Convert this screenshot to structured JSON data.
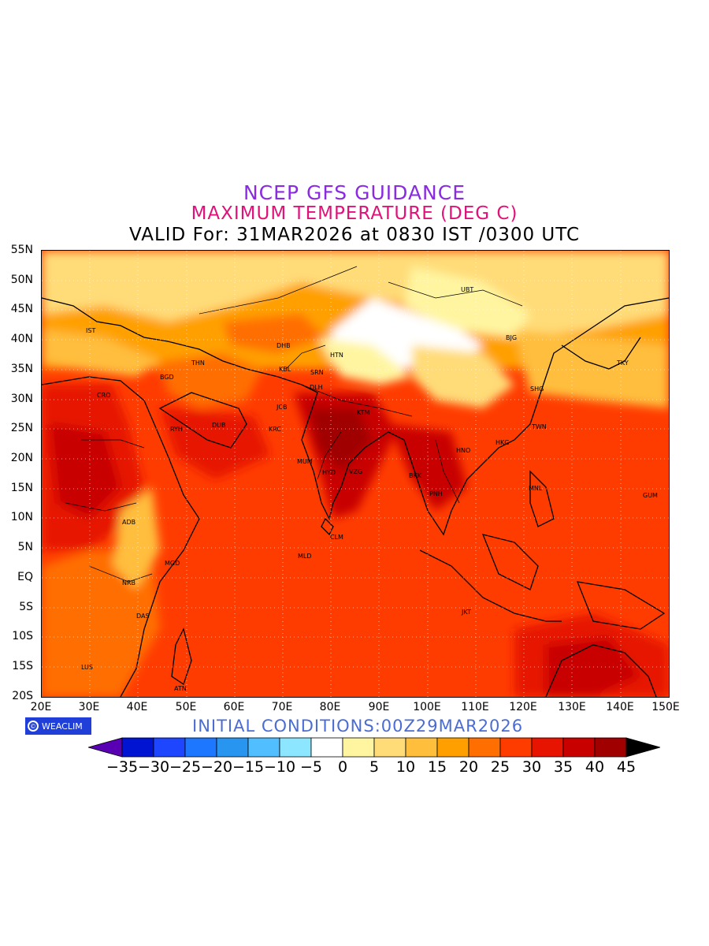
{
  "header": {
    "title": "NCEP GFS GUIDANCE",
    "subtitle": "MAXIMUM TEMPERATURE (DEG C)",
    "valid_line": "VALID For: 31MAR2026 at 0830 IST /0300 UTC"
  },
  "map": {
    "lat_labels": [
      "55N",
      "50N",
      "45N",
      "40N",
      "35N",
      "30N",
      "25N",
      "20N",
      "15N",
      "10N",
      "5N",
      "EQ",
      "5S",
      "10S",
      "15S",
      "20S"
    ],
    "lon_labels": [
      "20E",
      "30E",
      "40E",
      "50E",
      "60E",
      "70E",
      "80E",
      "90E",
      "100E",
      "110E",
      "120E",
      "130E",
      "140E",
      "150E"
    ],
    "cities": [
      {
        "code": "UBT"
      },
      {
        "code": "BJG"
      },
      {
        "code": "TKY"
      },
      {
        "code": "SHG"
      },
      {
        "code": "TWN"
      },
      {
        "code": "HKG"
      },
      {
        "code": "HNO"
      },
      {
        "code": "BKK"
      },
      {
        "code": "PNH"
      },
      {
        "code": "MNL"
      },
      {
        "code": "GUM"
      },
      {
        "code": "JKT"
      },
      {
        "code": "HTN"
      },
      {
        "code": "DHB"
      },
      {
        "code": "KBL"
      },
      {
        "code": "SRN"
      },
      {
        "code": "DLH"
      },
      {
        "code": "JCB"
      },
      {
        "code": "KRC"
      },
      {
        "code": "KTM"
      },
      {
        "code": "MUM"
      },
      {
        "code": "HYD"
      },
      {
        "code": "VZG"
      },
      {
        "code": "CLM"
      },
      {
        "code": "MLD"
      },
      {
        "code": "THN"
      },
      {
        "code": "BGD"
      },
      {
        "code": "IST"
      },
      {
        "code": "CRO"
      },
      {
        "code": "RYH"
      },
      {
        "code": "DUB"
      },
      {
        "code": "ADB"
      },
      {
        "code": "MGD"
      },
      {
        "code": "NRB"
      },
      {
        "code": "DAS"
      },
      {
        "code": "LUS"
      },
      {
        "code": "ATN"
      }
    ]
  },
  "footer": {
    "logo_text": "WEACLIM",
    "initial_conditions": "INITIAL CONDITIONS:00Z29MAR2026"
  },
  "colorbar": {
    "labels": [
      "-35",
      "-30",
      "-25",
      "-20",
      "-15",
      "-10",
      "-5",
      "0",
      "5",
      "10",
      "15",
      "20",
      "25",
      "30",
      "35",
      "40",
      "45"
    ],
    "colors": [
      "#5a00b4",
      "#0014d2",
      "#1e46ff",
      "#1e78ff",
      "#2896f0",
      "#50beff",
      "#8ce6ff",
      "#ffffff",
      "#fff5a0",
      "#ffdc78",
      "#ffbe3c",
      "#ffa000",
      "#ff6e00",
      "#ff3c00",
      "#e61400",
      "#c80000",
      "#a00000",
      "#000000"
    ]
  }
}
